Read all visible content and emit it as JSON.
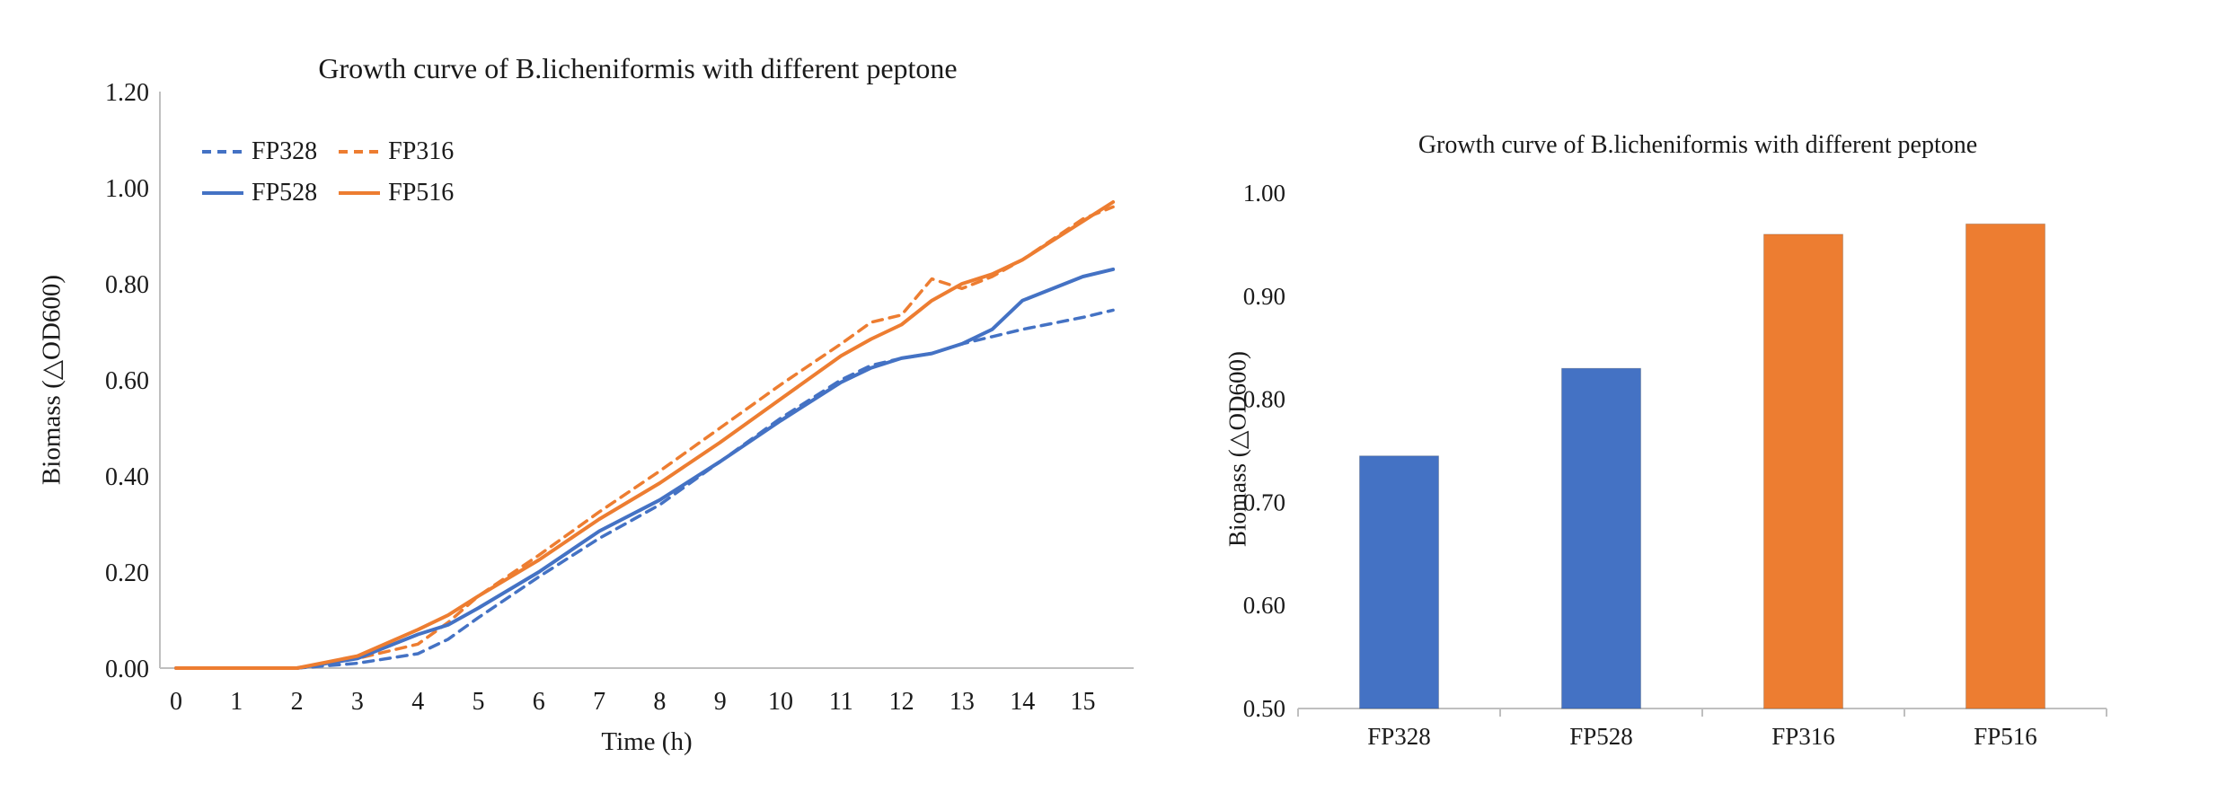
{
  "styles": {
    "blue": "#4472C4",
    "orange": "#ED7D31",
    "axis_line": "#BFBFBF",
    "text_color": "#1a1a1a",
    "background": "#ffffff"
  },
  "chart_data": [
    {
      "id": "growth-line-chart",
      "type": "line",
      "title": "Growth curve of B.licheniformis with different peptone",
      "xlabel": "Time (h)",
      "ylabel": "Biomass (△OD600)",
      "xlim": [
        0,
        15.5
      ],
      "ylim": [
        0.0,
        1.2
      ],
      "x_ticks": [
        0,
        1,
        2,
        3,
        4,
        5,
        6,
        7,
        8,
        9,
        10,
        11,
        12,
        13,
        14,
        15
      ],
      "y_ticks": [
        0.0,
        0.2,
        0.4,
        0.6,
        0.8,
        1.0,
        1.2
      ],
      "grid": false,
      "legend_position": "inside-top-left",
      "x": [
        0,
        1,
        2,
        3,
        4,
        4.5,
        5,
        6,
        7,
        8,
        9,
        10,
        11,
        11.5,
        12,
        12.5,
        13,
        13.5,
        14,
        15,
        15.5
      ],
      "series": [
        {
          "name": "FP328",
          "color": "#4472C4",
          "style": "dashed",
          "values": [
            0,
            0,
            0,
            0.01,
            0.03,
            0.06,
            0.105,
            0.19,
            0.27,
            0.34,
            0.43,
            0.52,
            0.6,
            0.63,
            0.645,
            0.655,
            0.675,
            0.69,
            0.705,
            0.73,
            0.745
          ]
        },
        {
          "name": "FP316",
          "color": "#ED7D31",
          "style": "dashed",
          "values": [
            0,
            0,
            0,
            0.02,
            0.05,
            0.095,
            0.15,
            0.235,
            0.325,
            0.41,
            0.5,
            0.59,
            0.675,
            0.72,
            0.735,
            0.81,
            0.79,
            0.815,
            0.85,
            0.935,
            0.96
          ]
        },
        {
          "name": "FP528",
          "color": "#4472C4",
          "style": "solid",
          "values": [
            0,
            0,
            0,
            0.02,
            0.07,
            0.09,
            0.125,
            0.2,
            0.285,
            0.35,
            0.43,
            0.515,
            0.595,
            0.625,
            0.645,
            0.655,
            0.675,
            0.705,
            0.765,
            0.815,
            0.83
          ]
        },
        {
          "name": "FP516",
          "color": "#ED7D31",
          "style": "solid",
          "values": [
            0,
            0,
            0,
            0.025,
            0.08,
            0.11,
            0.15,
            0.225,
            0.31,
            0.385,
            0.47,
            0.56,
            0.65,
            0.685,
            0.715,
            0.765,
            0.8,
            0.82,
            0.85,
            0.93,
            0.97
          ]
        }
      ]
    },
    {
      "id": "growth-bar-chart",
      "type": "bar",
      "title": "Growth curve of B.licheniformis with different peptone",
      "xlabel": "",
      "ylabel": "Biomass (△OD600)",
      "ylim": [
        0.5,
        1.0
      ],
      "y_ticks": [
        0.5,
        0.6,
        0.7,
        0.8,
        0.9,
        1.0
      ],
      "grid": false,
      "categories": [
        "FP328",
        "FP528",
        "FP316",
        "FP516"
      ],
      "values": [
        0.745,
        0.83,
        0.96,
        0.97
      ],
      "bar_colors": [
        "#4472C4",
        "#4472C4",
        "#ED7D31",
        "#ED7D31"
      ]
    }
  ]
}
